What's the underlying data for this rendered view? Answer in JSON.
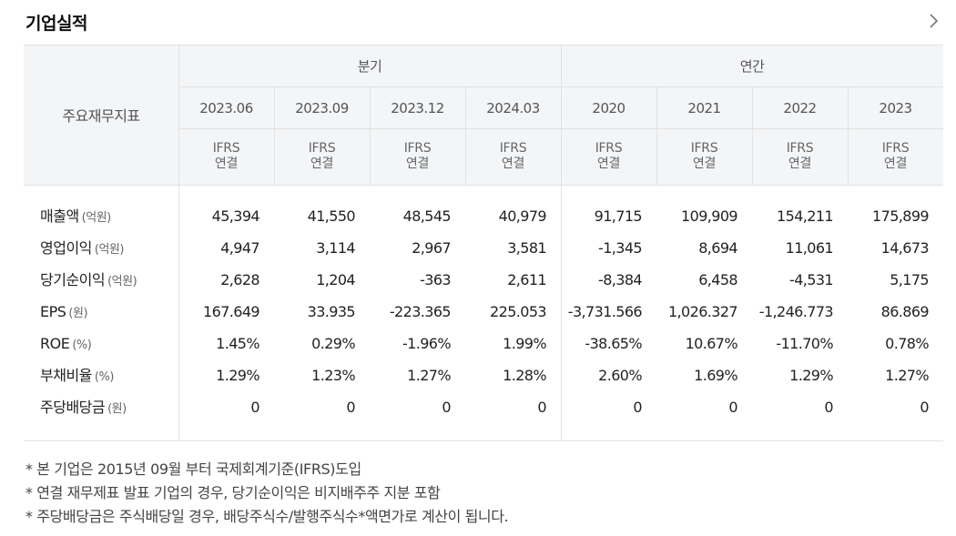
{
  "header": {
    "title": "기업실적",
    "more_icon": "chevron-right-icon"
  },
  "table": {
    "label_header": "주요재무지표",
    "groups": [
      {
        "label": "분기",
        "periods": [
          "2023.06",
          "2023.09",
          "2023.12",
          "2024.03"
        ]
      },
      {
        "label": "연간",
        "periods": [
          "2020",
          "2021",
          "2022",
          "2023"
        ]
      }
    ],
    "basis_line1": "IFRS",
    "basis_line2": "연결",
    "rows": [
      {
        "label": "매출액",
        "unit": "(억원)",
        "values": [
          "45,394",
          "41,550",
          "48,545",
          "40,979",
          "91,715",
          "109,909",
          "154,211",
          "175,899"
        ]
      },
      {
        "label": "영업이익",
        "unit": "(억원)",
        "values": [
          "4,947",
          "3,114",
          "2,967",
          "3,581",
          "-1,345",
          "8,694",
          "11,061",
          "14,673"
        ]
      },
      {
        "label": "당기순이익",
        "unit": "(억원)",
        "values": [
          "2,628",
          "1,204",
          "-363",
          "2,611",
          "-8,384",
          "6,458",
          "-4,531",
          "5,175"
        ]
      },
      {
        "label": "EPS",
        "unit": "(원)",
        "values": [
          "167.649",
          "33.935",
          "-223.365",
          "225.053",
          "-3,731.566",
          "1,026.327",
          "-1,246.773",
          "86.869"
        ]
      },
      {
        "label": "ROE",
        "unit": "(%)",
        "values": [
          "1.45%",
          "0.29%",
          "-1.96%",
          "1.99%",
          "-38.65%",
          "10.67%",
          "-11.70%",
          "0.78%"
        ]
      },
      {
        "label": "부채비율",
        "unit": "(%)",
        "values": [
          "1.29%",
          "1.23%",
          "1.27%",
          "1.28%",
          "2.60%",
          "1.69%",
          "1.29%",
          "1.27%"
        ]
      },
      {
        "label": "주당배당금",
        "unit": "(원)",
        "values": [
          "0",
          "0",
          "0",
          "0",
          "0",
          "0",
          "0",
          "0"
        ]
      }
    ]
  },
  "notes": [
    "* 본 기업은 2015년 09월 부터 국제회계기준(IFRS)도입",
    "* 연결 재무제표 발표 기업의 경우, 당기순이익은 비지배주주 지분 포함",
    "* 주당배당금은 주식배당일 경우, 배당주식수/발행주식수*액면가로 계산이 됩니다."
  ]
}
